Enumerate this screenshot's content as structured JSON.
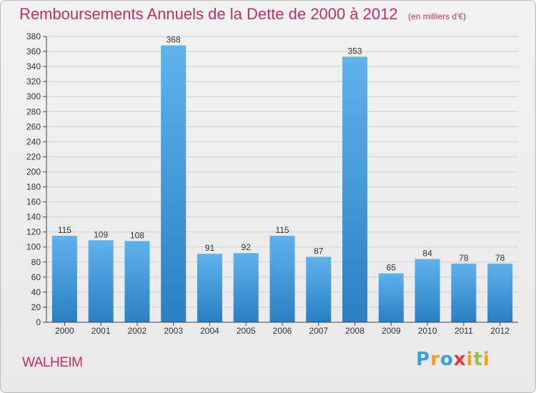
{
  "title": "Remboursements Annuels de la Dette de 2000 à 2012",
  "subtitle": "(en milliers d'€)",
  "commune": "WALHEIM",
  "logo": {
    "text": "Proxiti",
    "letters": [
      "P",
      "r",
      "o",
      "x",
      "i",
      "t",
      "i"
    ],
    "colors": [
      "#3aa0dc",
      "#f4a11c",
      "#3aa0dc",
      "#e53935",
      "#f4a11c",
      "#8bc34a",
      "#f4a11c"
    ]
  },
  "colors": {
    "accent": "#c12d6a",
    "bar_light": "#5eb3ec",
    "bar_dark": "#2a7fc4",
    "grid": "#cfcfcf"
  },
  "chart_data": {
    "type": "bar",
    "categories": [
      "2000",
      "2001",
      "2002",
      "2003",
      "2004",
      "2005",
      "2006",
      "2007",
      "2008",
      "2009",
      "2010",
      "2011",
      "2012"
    ],
    "values": [
      115,
      109,
      108,
      368,
      91,
      92,
      115,
      87,
      353,
      65,
      84,
      78,
      78
    ],
    "title": "Remboursements Annuels de la Dette de 2000 à 2012",
    "subtitle": "(en milliers d'€)",
    "xlabel": "",
    "ylabel": "",
    "ylim": [
      0,
      380
    ],
    "yticks": [
      0,
      20,
      40,
      60,
      80,
      100,
      120,
      140,
      160,
      180,
      200,
      220,
      240,
      260,
      280,
      300,
      320,
      340,
      360,
      380
    ],
    "grid": true,
    "data_labels": true
  }
}
